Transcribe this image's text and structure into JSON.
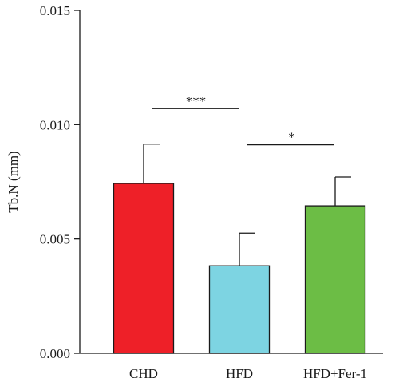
{
  "chart_data": {
    "type": "bar",
    "title": "",
    "xlabel": "",
    "ylabel": "Tb.N (mm)",
    "ylim": [
      0,
      0.015
    ],
    "yticks": [
      "0.000",
      "0.005",
      "0.010",
      "0.015"
    ],
    "ytick_values": [
      0,
      0.005,
      0.01,
      0.015
    ],
    "categories": [
      "CHD",
      "HFD",
      "HFD+Fer-1"
    ],
    "values": [
      0.00743,
      0.00383,
      0.00645
    ],
    "errors": [
      0.00172,
      0.00143,
      0.00126
    ],
    "colors": [
      "#EE2028",
      "#7DD4E2",
      "#6CBD45"
    ],
    "grid": false,
    "legend": "none",
    "significance": [
      {
        "from": 0,
        "to": 1,
        "label": "***",
        "y": 0.0107
      },
      {
        "from": 1,
        "to": 2,
        "label": "*",
        "y": 0.00912
      }
    ]
  }
}
